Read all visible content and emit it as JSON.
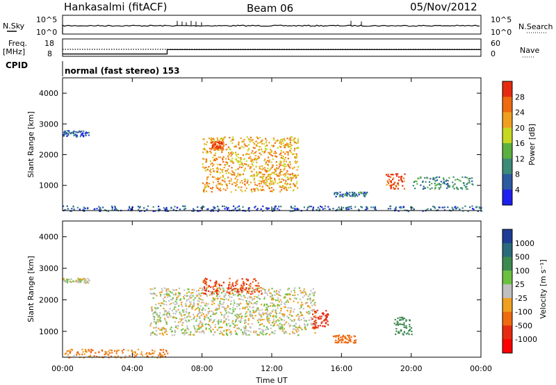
{
  "header": {
    "station": "Hankasalmi (fitACF)",
    "beam": "Beam 06",
    "date": "05/Nov/2012"
  },
  "nsky": {
    "label": "N.Sky",
    "ytick_top": "10^5",
    "ytick_bottom": "10^0",
    "right_label": "N.Search"
  },
  "freq": {
    "label_line1": "Freq.",
    "label_line2": "[MHz]",
    "ytick_top": "18",
    "ytick_bottom": "8",
    "right_tick_top": "60",
    "right_tick_bottom": "0",
    "right_label": "Nave",
    "freq_level_mhz": 12,
    "nave_steps": [
      {
        "from_hour": 0,
        "to_hour": 6,
        "nave": 8
      },
      {
        "from_hour": 6,
        "to_hour": 18,
        "nave": 23
      },
      {
        "from_hour": 18,
        "to_hour": 24,
        "nave": 23
      }
    ]
  },
  "cpid": {
    "label": "CPID",
    "mode": "normal (fast stereo) 153"
  },
  "time_axis": {
    "xlabel": "Time UT",
    "ticks": [
      "00:00",
      "04:00",
      "08:00",
      "12:00",
      "16:00",
      "20:00",
      "00:00"
    ]
  },
  "chart_data": [
    {
      "type": "heatmap",
      "name": "power",
      "ylabel": "Slant Range [km]",
      "xlabel": "Time UT",
      "xlim_hours": [
        0,
        24
      ],
      "ylim_km": [
        180,
        4500
      ],
      "yticks": [
        "1000",
        "2000",
        "3000",
        "4000"
      ],
      "ytick_values": [
        1000,
        2000,
        3000,
        4000
      ],
      "colorbar": {
        "label": "Power [dB]",
        "ticks": [
          "4",
          "8",
          "12",
          "16",
          "20",
          "24",
          "28"
        ],
        "tick_values": [
          4,
          8,
          12,
          16,
          20,
          24,
          28
        ],
        "range": [
          0,
          32
        ],
        "colors": [
          "#1e1ef0",
          "#2a5aa0",
          "#3c8a78",
          "#5cb040",
          "#c8d820",
          "#f0a020",
          "#f06a10",
          "#e62a10"
        ]
      },
      "regions": [
        {
          "t0": 8.0,
          "t1": 13.5,
          "r0": 800,
          "r1": 2600,
          "power": 22
        },
        {
          "t0": 8.5,
          "t1": 9.2,
          "r0": 2200,
          "r1": 2450,
          "power": 28
        },
        {
          "t0": 18.5,
          "t1": 19.6,
          "r0": 900,
          "r1": 1400,
          "power": 28
        },
        {
          "t0": 0.0,
          "t1": 1.5,
          "r0": 2600,
          "r1": 2800,
          "power": 6
        },
        {
          "t0": 15.5,
          "t1": 17.5,
          "r0": 650,
          "r1": 800,
          "power": 8
        },
        {
          "t0": 20.0,
          "t1": 23.5,
          "r0": 900,
          "r1": 1300,
          "power": 10
        },
        {
          "t0": 0.0,
          "t1": 24.0,
          "r0": 180,
          "r1": 350,
          "power": 6
        }
      ]
    },
    {
      "type": "heatmap",
      "name": "velocity",
      "ylabel": "Slant Range [km]",
      "xlabel": "Time UT",
      "xlim_hours": [
        0,
        24
      ],
      "ylim_km": [
        180,
        4500
      ],
      "yticks": [
        "1000",
        "2000",
        "3000",
        "4000"
      ],
      "ytick_values": [
        1000,
        2000,
        3000,
        4000
      ],
      "colorbar": {
        "label": "Velocity [m s⁻¹]",
        "ticks": [
          "1000",
          "500",
          "100",
          "25",
          "-25",
          "-100",
          "-500",
          "-1000"
        ],
        "tick_values": [
          1000,
          500,
          100,
          25,
          -25,
          -100,
          -500,
          -1000
        ],
        "colors": [
          "#1e3c96",
          "#2a6a7a",
          "#3c8a50",
          "#6cc040",
          "#c0c0c0",
          "#f0a020",
          "#f06a10",
          "#e62a10",
          "#ff0000"
        ]
      },
      "regions": [
        {
          "t0": 5.0,
          "t1": 14.5,
          "r0": 900,
          "r1": 2400,
          "velocity": 0
        },
        {
          "t0": 8.0,
          "t1": 11.5,
          "r0": 2200,
          "r1": 2700,
          "velocity": -300
        },
        {
          "t0": 14.3,
          "t1": 15.2,
          "r0": 1100,
          "r1": 1700,
          "velocity": -500
        },
        {
          "t0": 15.5,
          "t1": 16.8,
          "r0": 650,
          "r1": 900,
          "velocity": -200
        },
        {
          "t0": 19.0,
          "t1": 20.0,
          "r0": 900,
          "r1": 1500,
          "velocity": 200
        },
        {
          "t0": 0.0,
          "t1": 6.0,
          "r0": 180,
          "r1": 450,
          "velocity": -80
        },
        {
          "t0": 0.0,
          "t1": 1.5,
          "r0": 2550,
          "r1": 2700,
          "velocity": 0
        }
      ]
    }
  ]
}
